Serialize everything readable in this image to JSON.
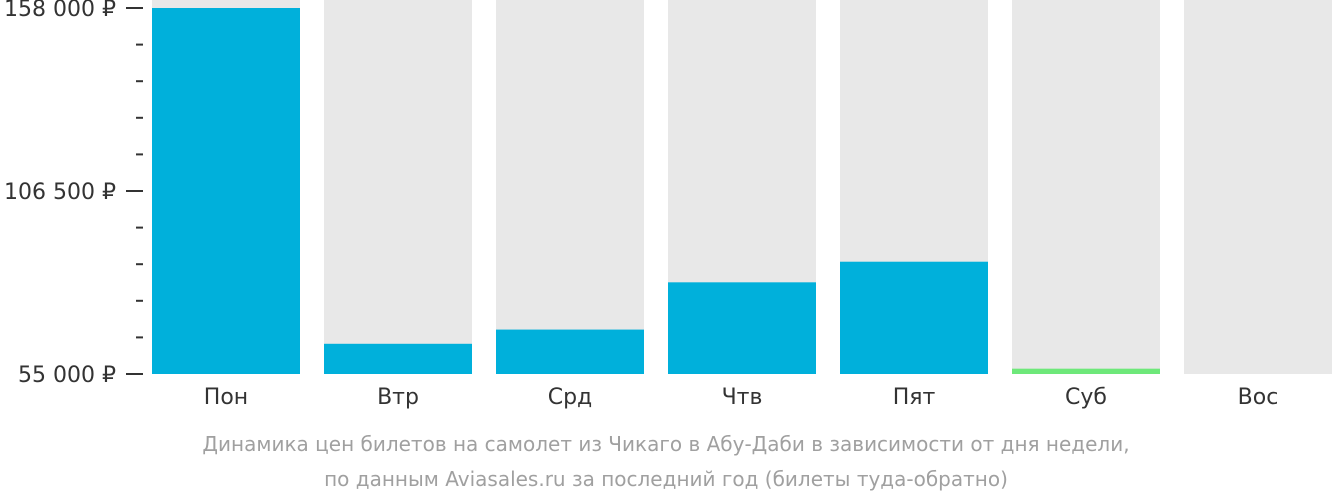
{
  "chart_data": {
    "type": "bar",
    "categories": [
      "Пон",
      "Втр",
      "Срд",
      "Чтв",
      "Пят",
      "Суб",
      "Вос"
    ],
    "values": [
      158000,
      63500,
      67500,
      80800,
      86600,
      56500,
      null
    ],
    "ylim": [
      55000,
      158000
    ],
    "y_ticks": [
      55000,
      106500,
      158000
    ],
    "y_tick_labels": [
      "55 000 ₽",
      "106 500 ₽",
      "158 000 ₽"
    ],
    "colors": {
      "bar": "#00b0db",
      "lowest_bar": "#6ee87a",
      "track": "#e8e8e8",
      "text": "#333333"
    },
    "lowest_category": "Суб",
    "caption_line1": "Динамика цен билетов на самолет из Чикаго в Абу-Даби в зависимости от дня недели,",
    "caption_line2": "по данным Aviasales.ru за последний год (билеты туда-обратно)"
  }
}
